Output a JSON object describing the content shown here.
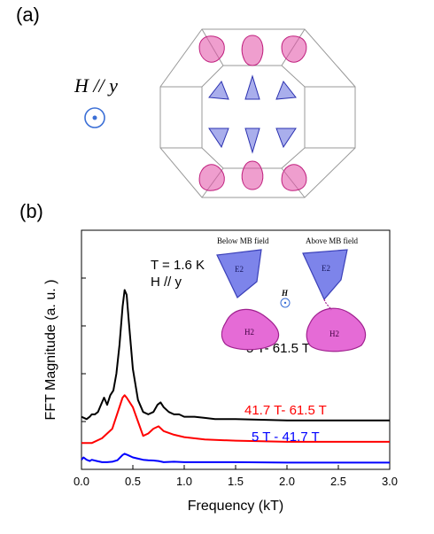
{
  "panel_a": {
    "label": "(a)",
    "field_label": "H // y"
  },
  "panel_b": {
    "label": "(b)",
    "annotation": {
      "temperature": "T = 1.6 K",
      "field": "H // y"
    },
    "inset": {
      "left_title": "Below MB field",
      "right_title": "Above MB field",
      "pocket_top": "E2",
      "pocket_bottom": "H2",
      "field_symbol": "H"
    }
  },
  "colors": {
    "blue_pocket": "#6f78e0",
    "pink_pocket": "#e24fa6",
    "field_circle": "#3b6fd6"
  },
  "chart_data": {
    "type": "line",
    "xlabel": "Frequency (kT)",
    "ylabel": "FFT Magnitude (a. u. )",
    "xlim": [
      0.0,
      3.0
    ],
    "x_ticks": [
      "0.0",
      "0.5",
      "1.0",
      "1.5",
      "2.0",
      "2.5",
      "3.0"
    ],
    "series": [
      {
        "name": "5 T- 61.5 T",
        "color": "#000000",
        "x": [
          0.0,
          0.05,
          0.08,
          0.1,
          0.13,
          0.16,
          0.19,
          0.22,
          0.25,
          0.28,
          0.31,
          0.34,
          0.37,
          0.4,
          0.42,
          0.44,
          0.46,
          0.5,
          0.55,
          0.6,
          0.65,
          0.7,
          0.74,
          0.77,
          0.8,
          0.85,
          0.9,
          0.95,
          1.0,
          1.1,
          1.2,
          1.3,
          1.5,
          2.0,
          2.5,
          3.0
        ],
        "y": [
          0.22,
          0.21,
          0.22,
          0.23,
          0.23,
          0.24,
          0.27,
          0.3,
          0.27,
          0.31,
          0.33,
          0.4,
          0.52,
          0.68,
          0.75,
          0.73,
          0.62,
          0.42,
          0.29,
          0.24,
          0.23,
          0.24,
          0.27,
          0.28,
          0.26,
          0.24,
          0.23,
          0.23,
          0.22,
          0.22,
          0.215,
          0.21,
          0.21,
          0.205,
          0.205,
          0.205
        ]
      },
      {
        "name": "41.7 T- 61.5 T",
        "color": "#ff0000",
        "x": [
          0.0,
          0.1,
          0.2,
          0.3,
          0.4,
          0.42,
          0.44,
          0.5,
          0.55,
          0.6,
          0.65,
          0.7,
          0.75,
          0.8,
          0.9,
          1.0,
          1.2,
          1.5,
          2.0,
          2.5,
          3.0
        ],
        "y": [
          0.11,
          0.11,
          0.13,
          0.17,
          0.3,
          0.31,
          0.3,
          0.26,
          0.2,
          0.14,
          0.15,
          0.17,
          0.18,
          0.16,
          0.145,
          0.135,
          0.125,
          0.12,
          0.115,
          0.115,
          0.115
        ]
      },
      {
        "name": "5 T - 41.7 T",
        "color": "#0000ff",
        "x": [
          0.0,
          0.02,
          0.05,
          0.08,
          0.1,
          0.15,
          0.2,
          0.25,
          0.3,
          0.35,
          0.4,
          0.42,
          0.45,
          0.5,
          0.55,
          0.6,
          0.65,
          0.7,
          0.75,
          0.8,
          0.9,
          1.0,
          1.5,
          2.0,
          2.5,
          3.0
        ],
        "y": [
          0.04,
          0.05,
          0.04,
          0.035,
          0.04,
          0.035,
          0.03,
          0.03,
          0.032,
          0.038,
          0.06,
          0.065,
          0.06,
          0.05,
          0.045,
          0.04,
          0.038,
          0.037,
          0.035,
          0.03,
          0.032,
          0.03,
          0.03,
          0.028,
          0.028,
          0.028
        ]
      }
    ]
  }
}
